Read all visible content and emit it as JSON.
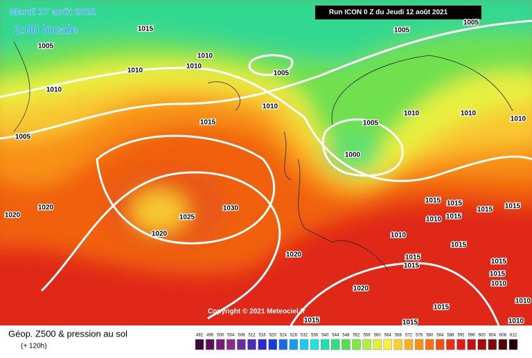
{
  "header": {
    "date": "Mardi 17 août 2021",
    "time": "2:00 locale",
    "run": "Run ICON 0 Z du Jeudi 12 août 2021",
    "copyright": "Copyright © 2021 Meteociel.fr"
  },
  "legend": {
    "title": "Géop. Z500 & pression au sol",
    "lead": "(+ 120h)",
    "values": [
      492,
      496,
      500,
      504,
      508,
      512,
      516,
      520,
      524,
      528,
      532,
      536,
      540,
      544,
      548,
      552,
      556,
      560,
      564,
      568,
      572,
      576,
      580,
      584,
      588,
      592,
      596,
      600,
      604,
      608,
      612
    ],
    "colors": [
      "#3b0a3b",
      "#5a0f5a",
      "#7a1a7a",
      "#8c2a8c",
      "#6a2aa0",
      "#4a2ab8",
      "#2a2ad0",
      "#1a3ae0",
      "#1a6ae8",
      "#1a9aee",
      "#1acaf0",
      "#20e0e0",
      "#20e0b0",
      "#30e080",
      "#50e050",
      "#80e840",
      "#b0f040",
      "#e0f040",
      "#f8f040",
      "#f8d030",
      "#f8b020",
      "#f89018",
      "#f87010",
      "#f05010",
      "#e83010",
      "#e01818",
      "#c81010",
      "#a80808",
      "#800808",
      "#500404",
      "#200000"
    ]
  },
  "isobar_labels": [
    1015,
    1005,
    1010,
    1010,
    1010,
    1005,
    1010,
    1005,
    1005,
    1010,
    1015,
    1005,
    1010,
    1010,
    1010,
    1005,
    1000,
    1020,
    1020,
    1025,
    1030,
    1020,
    1015,
    1015,
    1015,
    1015,
    1010,
    1015,
    1010,
    1015,
    1020,
    1015,
    1015,
    1015,
    1015,
    1010,
    1020,
    1015,
    1015,
    1015,
    1010,
    1010
  ]
}
